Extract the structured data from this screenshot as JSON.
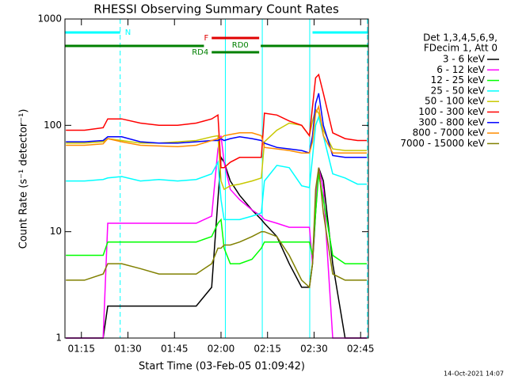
{
  "chart_data": {
    "type": "line",
    "title": "RHESSI Observing Summary Count Rates",
    "xlabel": "Start Time (03-Feb-05 01:09:42)",
    "ylabel": "Count Rate (s⁻¹ detector⁻¹)",
    "legend_header": [
      "Det 1,3,4,5,6,9,",
      "FDecim 1, Att 0"
    ],
    "footer": "14-Oct-2021 14:07",
    "log_y": true,
    "xlim": [
      69.7,
      167.5
    ],
    "ylim": [
      1,
      1000
    ],
    "yticks": [
      1,
      10,
      100,
      1000
    ],
    "xticks": [
      {
        "value": 75,
        "label": "01:15"
      },
      {
        "value": 90,
        "label": "01:30"
      },
      {
        "value": 105,
        "label": "01:45"
      },
      {
        "value": 120,
        "label": "02:00"
      },
      {
        "value": 135,
        "label": "02:15"
      },
      {
        "value": 150,
        "label": "02:30"
      },
      {
        "value": 165,
        "label": "02:45"
      }
    ],
    "x": [
      70,
      76,
      82,
      83.5,
      88,
      94,
      100,
      106,
      112,
      117,
      119,
      120,
      121,
      123,
      126,
      130,
      133,
      134,
      138,
      142,
      146,
      148.5,
      149.5,
      150.5,
      151.5,
      153,
      156,
      160,
      164,
      167
    ],
    "series": [
      {
        "name": "3 - 6 keV",
        "color": "#000000",
        "values": [
          1,
          1,
          1,
          2,
          2,
          2,
          2,
          2,
          2,
          3,
          20,
          50,
          45,
          30,
          22,
          16,
          13,
          12,
          9,
          5,
          3,
          3,
          5,
          15,
          40,
          30,
          5,
          1,
          1,
          1
        ]
      },
      {
        "name": "6 - 12 keV",
        "color": "#ff00ff",
        "values": [
          1,
          1,
          1,
          12,
          12,
          12,
          12,
          12,
          12,
          14,
          60,
          80,
          45,
          25,
          20,
          16,
          14,
          13,
          12,
          11,
          11,
          11,
          5,
          20,
          40,
          25,
          1,
          1,
          1,
          1
        ]
      },
      {
        "name": "12 - 25 keV",
        "color": "#00ff00",
        "values": [
          6,
          6,
          6,
          8,
          8,
          8,
          8,
          8,
          8,
          9,
          12,
          13,
          7,
          5,
          5,
          5.5,
          7,
          8,
          8,
          8,
          8,
          8,
          6,
          15,
          35,
          20,
          6,
          5,
          5,
          5
        ]
      },
      {
        "name": "25 - 50 keV",
        "color": "#00ffff",
        "values": [
          30,
          30,
          31,
          32,
          33,
          30,
          31,
          30,
          31,
          35,
          45,
          20,
          13,
          13,
          13,
          14,
          15,
          30,
          42,
          40,
          27,
          26,
          50,
          100,
          120,
          80,
          35,
          32,
          28,
          28
        ]
      },
      {
        "name": "50 - 100 keV",
        "color": "#c8c800",
        "values": [
          68,
          68,
          70,
          75,
          72,
          68,
          68,
          70,
          72,
          78,
          80,
          30,
          25,
          27,
          28,
          30,
          32,
          70,
          90,
          105,
          100,
          80,
          110,
          140,
          130,
          90,
          60,
          58,
          58,
          58
        ]
      },
      {
        "name": "100 - 300 keV",
        "color": "#ff0000",
        "values": [
          90,
          90,
          95,
          115,
          115,
          105,
          100,
          100,
          105,
          115,
          125,
          40,
          40,
          45,
          50,
          50,
          50,
          130,
          125,
          110,
          100,
          80,
          150,
          280,
          300,
          200,
          85,
          75,
          72,
          72
        ]
      },
      {
        "name": "300 - 800 keV",
        "color": "#0000ff",
        "values": [
          70,
          70,
          72,
          78,
          78,
          70,
          68,
          68,
          70,
          72,
          72,
          75,
          72,
          75,
          78,
          75,
          72,
          68,
          62,
          60,
          58,
          55,
          80,
          160,
          200,
          100,
          52,
          50,
          50,
          50
        ]
      },
      {
        "name": "800 - 7000 keV",
        "color": "#ff8c00",
        "values": [
          65,
          65,
          67,
          75,
          70,
          65,
          64,
          63,
          65,
          72,
          75,
          76,
          80,
          82,
          85,
          85,
          80,
          62,
          60,
          58,
          55,
          55,
          70,
          130,
          150,
          80,
          55,
          55,
          55,
          55
        ]
      },
      {
        "name": "7000 - 15000 keV",
        "color": "#808000",
        "values": [
          3.5,
          3.5,
          4,
          5,
          5,
          4.5,
          4,
          4,
          4,
          5,
          7,
          7,
          7.5,
          7.5,
          8,
          9,
          10,
          10,
          9,
          6,
          3.5,
          3,
          5,
          25,
          40,
          15,
          4,
          3.5,
          3.5,
          3.5
        ]
      }
    ],
    "state_bars": [
      {
        "label": "N",
        "color": "#00ffff",
        "segments": [
          [
            69.7,
            87.5
          ],
          [
            149.5,
            167.5
          ]
        ]
      },
      {
        "label": "F",
        "color": "#e00000",
        "segments": [
          [
            117,
            132.3
          ]
        ]
      },
      {
        "label": "RD0",
        "color": "#008000",
        "segments": [
          [
            69.7,
            114.5
          ],
          [
            132.8,
            167.5
          ]
        ]
      },
      {
        "label": "RD4",
        "color": "#008000",
        "segments": [
          [
            117,
            132.3
          ]
        ]
      }
    ],
    "vlines": [
      {
        "x": 87.5,
        "dashed": true,
        "color": "#00ffff"
      },
      {
        "x": 121.4,
        "dashed": false,
        "color": "#00ffff"
      },
      {
        "x": 133.3,
        "dashed": false,
        "color": "#00ffff"
      },
      {
        "x": 148.6,
        "dashed": false,
        "color": "#00ffff"
      },
      {
        "x": 167.2,
        "dashed": true,
        "color": "#00ffff"
      }
    ]
  }
}
